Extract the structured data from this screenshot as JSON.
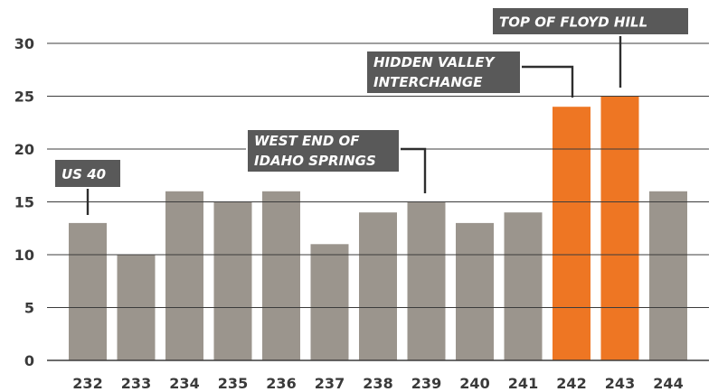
{
  "chart_data": {
    "type": "bar",
    "title": "",
    "xlabel": "",
    "ylabel": "",
    "ylim": [
      0,
      30
    ],
    "yticks": [
      0,
      5,
      10,
      15,
      20,
      25,
      30
    ],
    "grid": true,
    "categories": [
      "232",
      "233",
      "234",
      "235",
      "236",
      "237",
      "238",
      "239",
      "240",
      "241",
      "242",
      "243",
      "244"
    ],
    "values": [
      13,
      10,
      16,
      15,
      16,
      11,
      14,
      15,
      13,
      14,
      24,
      25,
      16
    ],
    "highlighted": [
      "242",
      "243"
    ],
    "annotations": [
      {
        "category": "232",
        "lines": [
          "US 40"
        ]
      },
      {
        "category": "239",
        "lines": [
          "WEST END OF",
          "IDAHO SPRINGS"
        ]
      },
      {
        "category": "242",
        "lines": [
          "HIDDEN VALLEY",
          "INTERCHANGE"
        ]
      },
      {
        "category": "243",
        "lines": [
          "TOP OF FLOYD HILL"
        ]
      }
    ]
  },
  "colors": {
    "bar": "#9b958d",
    "highlight": "#ee7623",
    "grid": "#3c3c3c",
    "label_box": "#595959",
    "text": "#3a3a3a"
  }
}
